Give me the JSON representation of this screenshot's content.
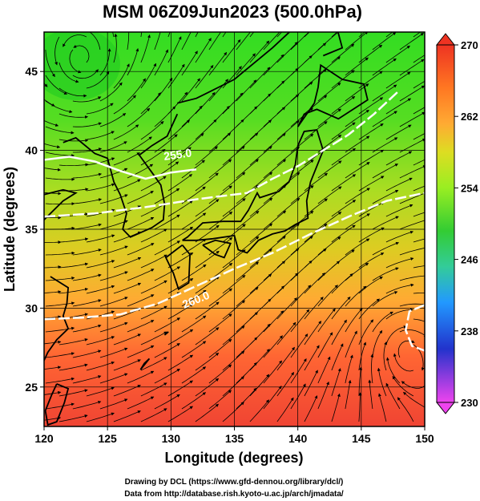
{
  "title": "MSM 06Z09Jun2023 (500.0hPa)",
  "xlabel": "Longitude (degrees)",
  "ylabel": "Latitude  (degrees)",
  "x_ticks": [
    "120",
    "125",
    "130",
    "135",
    "140",
    "145",
    "150"
  ],
  "y_ticks": [
    "25",
    "30",
    "35",
    "40",
    "45"
  ],
  "colorbar": {
    "ticks": [
      "270",
      "262",
      "254",
      "246",
      "238",
      "230"
    ],
    "min": 230,
    "max": 270
  },
  "contour_labels": [
    "255.0",
    "260.0"
  ],
  "credits": [
    "Drawing by DCL (https://www.gfd-dennou.org/library/dcl/)",
    "Data from http://database.rish.kyoto-u.ac.jp/arch/jmadata/"
  ],
  "map": {
    "lon_range": [
      120,
      150
    ],
    "lat_range": [
      22.5,
      47.5
    ],
    "grid_lon": [
      120,
      125,
      130,
      135,
      140,
      145,
      150
    ],
    "grid_lat": [
      25,
      30,
      35,
      40,
      45
    ],
    "contours": [
      {
        "value": 255,
        "points": [
          [
            120,
            39.4
          ],
          [
            122,
            39.6
          ],
          [
            124,
            39.3
          ],
          [
            126,
            38.7
          ],
          [
            128,
            38.2
          ],
          [
            130,
            38.6
          ],
          [
            132,
            38.8
          ]
        ]
      },
      {
        "value": 258,
        "points": [
          [
            120,
            35.8
          ],
          [
            124,
            36
          ],
          [
            128,
            36.4
          ],
          [
            132,
            36.9
          ],
          [
            136,
            37.3
          ],
          [
            138,
            38.2
          ],
          [
            140,
            39
          ],
          [
            142,
            40
          ],
          [
            144,
            41
          ],
          [
            146,
            42.3
          ],
          [
            148,
            43.8
          ]
        ]
      },
      {
        "value": 260,
        "points": [
          [
            120,
            29.3
          ],
          [
            123,
            29.4
          ],
          [
            126,
            29.6
          ],
          [
            129,
            30.3
          ],
          [
            132,
            31.4
          ],
          [
            135,
            32.5
          ],
          [
            138,
            33.5
          ],
          [
            141,
            34.7
          ],
          [
            144,
            35.8
          ],
          [
            147,
            36.8
          ],
          [
            150,
            37.3
          ]
        ]
      },
      {
        "value": 268,
        "points": [
          [
            150,
            30.2
          ],
          [
            148.8,
            29.8
          ],
          [
            148.5,
            28.6
          ],
          [
            149,
            27.6
          ],
          [
            150,
            27.3
          ]
        ]
      }
    ]
  },
  "colors": {
    "background": "#ffffff",
    "frame": "#000000",
    "contour": "#ffffff",
    "streamline": "#000000",
    "coastline": "#000000",
    "colorbar_stops": [
      "#ee44ee",
      "#2233cc",
      "#2299ff",
      "#33cc99",
      "#33cc33",
      "#99ee22",
      "#dddd22",
      "#ffaa33",
      "#ff7722",
      "#ee3322"
    ]
  }
}
